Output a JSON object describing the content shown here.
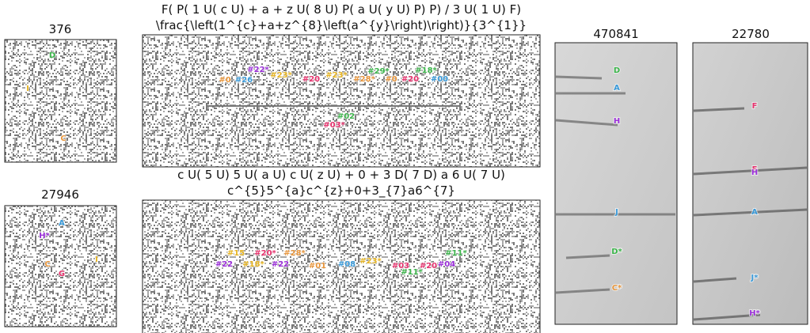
{
  "panels": [
    {
      "title": "376",
      "labels": [
        {
          "text": "D",
          "color": "#3cb44b"
        },
        {
          "text": "I",
          "color": "#e6b422"
        },
        {
          "text": "C",
          "color": "#e8963c"
        }
      ]
    },
    {
      "title": "27946",
      "labels": [
        {
          "text": "A",
          "color": "#3a9ad9"
        },
        {
          "text": "H*",
          "color": "#9b30d9"
        },
        {
          "text": "I",
          "color": "#e6b422"
        },
        {
          "text": "C",
          "color": "#e8963c"
        },
        {
          "text": "G",
          "color": "#e6336e"
        }
      ]
    },
    {
      "title": "F( P( 1 U( c U) + a + z U( 8 U) P( a U( y U) P) P) / 3 U( 1 U) F)",
      "subtitle": "\\frac{\\left(1^{c}+a+z^{8}\\left(a^{y}\\right)\\right)}{3^{1}}",
      "labels": [
        {
          "text": "#0",
          "color": "#e8963c"
        },
        {
          "text": "#26",
          "color": "#3a9ad9"
        },
        {
          "text": "#22*",
          "color": "#9b30d9"
        },
        {
          "text": "#23*",
          "color": "#e6b422"
        },
        {
          "text": "#20",
          "color": "#e6336e"
        },
        {
          "text": "#23*",
          "color": "#e6b422"
        },
        {
          "text": "#28*",
          "color": "#e8963c"
        },
        {
          "text": "#29*",
          "color": "#3cb44b"
        },
        {
          "text": "#0",
          "color": "#e8963c"
        },
        {
          "text": "#20",
          "color": "#e6336e"
        },
        {
          "text": "#18*",
          "color": "#3cb44b"
        },
        {
          "text": "#00",
          "color": "#3a9ad9"
        },
        {
          "text": "#02",
          "color": "#3cb44b"
        },
        {
          "text": "#03*",
          "color": "#e6336e"
        }
      ]
    },
    {
      "title": "c U( 5 U) 5 U( a U) c U( z U) + 0 + 3 D( 7 D) a 6 U( 7 U)",
      "subtitle": "c^{5}5^{a}c^{z}+0+3_{7}a6^{7}",
      "labels": [
        {
          "text": "#15",
          "color": "#e6b422"
        },
        {
          "text": "#20*",
          "color": "#e6336e"
        },
        {
          "text": "#28*",
          "color": "#e8963c"
        },
        {
          "text": "#22",
          "color": "#9b30d9"
        },
        {
          "text": "#18*",
          "color": "#e6b422"
        },
        {
          "text": "#22",
          "color": "#9b30d9"
        },
        {
          "text": "#01",
          "color": "#e8963c"
        },
        {
          "text": "#08",
          "color": "#3a9ad9"
        },
        {
          "text": "#23*",
          "color": "#e6b422"
        },
        {
          "text": "#03",
          "color": "#e6336e"
        },
        {
          "text": "#20",
          "color": "#e6336e"
        },
        {
          "text": "#04",
          "color": "#9b30d9"
        },
        {
          "text": "#11*",
          "color": "#3cb44b"
        },
        {
          "text": "#11*",
          "color": "#3cb44b"
        }
      ]
    },
    {
      "title": "470841",
      "labels": [
        {
          "text": "D",
          "color": "#3cb44b"
        },
        {
          "text": "A",
          "color": "#3a9ad9"
        },
        {
          "text": "H",
          "color": "#9b30d9"
        },
        {
          "text": "J",
          "color": "#3a9ad9"
        },
        {
          "text": "D*",
          "color": "#3cb44b"
        },
        {
          "text": "C*",
          "color": "#e8963c"
        }
      ]
    },
    {
      "title": "22780",
      "labels": [
        {
          "text": "F",
          "color": "#e6336e"
        },
        {
          "text": "F",
          "color": "#e6336e"
        },
        {
          "text": "H",
          "color": "#9b30d9"
        },
        {
          "text": "A",
          "color": "#3a9ad9"
        },
        {
          "text": "J*",
          "color": "#3a9ad9"
        },
        {
          "text": "H*",
          "color": "#9b30d9"
        }
      ]
    }
  ]
}
